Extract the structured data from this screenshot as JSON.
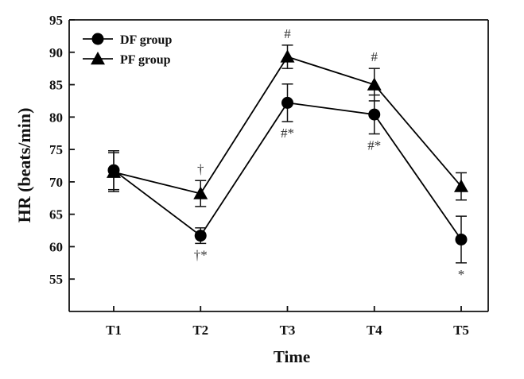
{
  "chart_data": {
    "type": "line",
    "xlabel": "Time",
    "ylabel": "HR (beats/min)",
    "categories": [
      "T1",
      "T2",
      "T3",
      "T4",
      "T5"
    ],
    "ylim": [
      50,
      95
    ],
    "yticks": [
      55,
      60,
      65,
      70,
      75,
      80,
      85,
      90,
      95
    ],
    "grid": false,
    "legend_position": "top-left",
    "series": [
      {
        "name": "DF group",
        "marker": "circle",
        "color": "#000000",
        "values": [
          71.8,
          61.7,
          82.2,
          80.4,
          61.1
        ],
        "error": [
          3.0,
          1.2,
          2.9,
          3.0,
          3.6
        ],
        "annotations": [
          "",
          "†*",
          "#*",
          "#*",
          "*"
        ]
      },
      {
        "name": "PF group",
        "marker": "triangle",
        "color": "#000000",
        "values": [
          71.5,
          68.2,
          89.3,
          85.0,
          69.3
        ],
        "error": [
          3.0,
          2.0,
          1.8,
          2.5,
          2.1
        ],
        "annotations": [
          "",
          "†",
          "#",
          "#",
          ""
        ]
      }
    ]
  }
}
